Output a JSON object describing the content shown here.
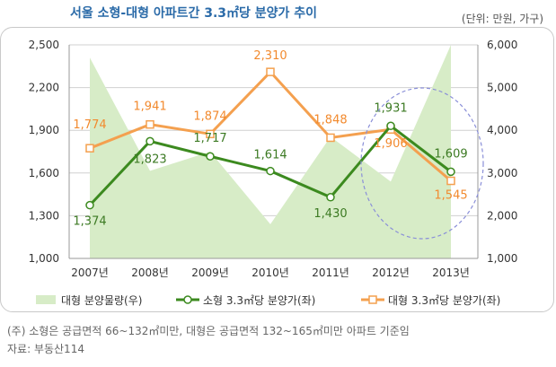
{
  "title": "서울 소형-대형 아파트간 3.3㎡당 분양가 추이",
  "unit": "(단위: 만원, 가구)",
  "note": "(주) 소형은 공급면적 66~132㎡미만, 대형은 공급면적 132~165㎡미만 아파트 기준임",
  "source": "자료: 부동산114",
  "colors": {
    "area": "#d7ecc7",
    "small": "#3c8a1f",
    "large": "#f4a04f",
    "largeText": "#f28a2e",
    "smallText": "#3c7a23",
    "grid": "#d0d0d0",
    "circle": "#8a8fd8"
  },
  "chart_data": {
    "type": "line",
    "categories": [
      "2007년",
      "2008년",
      "2009년",
      "2010년",
      "2011년",
      "2012년",
      "2013년"
    ],
    "y_left": {
      "ticks": [
        "1,000",
        "1,300",
        "1,600",
        "1,900",
        "2,200",
        "2,500"
      ],
      "ylim": [
        1000,
        2500
      ]
    },
    "y_right": {
      "ticks": [
        "1,000",
        "2,000",
        "3,000",
        "4,000",
        "5,000",
        "6,000"
      ],
      "ylim": [
        1000,
        6000
      ]
    },
    "series": [
      {
        "name": "대형 분양물량(우)",
        "type": "area",
        "axis": "right",
        "values": [
          5700,
          3050,
          3500,
          1800,
          3850,
          2800,
          6000
        ]
      },
      {
        "name": "소형 3.3㎡당 분양가(좌)",
        "type": "line",
        "axis": "left",
        "values": [
          1374,
          1823,
          1717,
          1614,
          1430,
          1931,
          1609
        ],
        "labels": [
          "1,374",
          "1,823",
          "1,717",
          "1,614",
          "1,430",
          "1,931",
          "1,609"
        ]
      },
      {
        "name": "대형 3.3㎡당 분양가(좌)",
        "type": "line",
        "axis": "left",
        "values": [
          1774,
          1941,
          1874,
          2310,
          1848,
          1906,
          1545
        ],
        "labels": [
          "1,774",
          "1,941",
          "1,874",
          "2,310",
          "1,848",
          "1,906",
          "1,545"
        ]
      }
    ]
  }
}
